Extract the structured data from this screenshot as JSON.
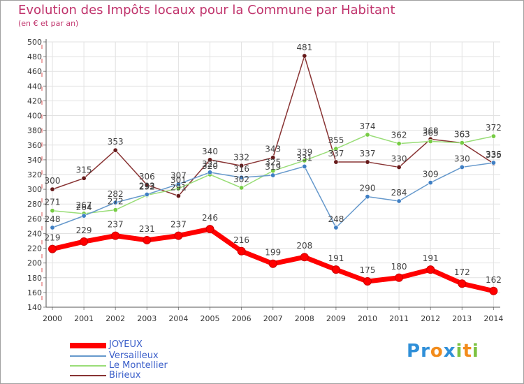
{
  "title": "Evolution des Impôts locaux pour la Commune par Habitant",
  "subtitle": "(en € et par an)",
  "logo": {
    "text": "Proxiti",
    "letters": [
      {
        "char": "P",
        "color": "#2f8fd8"
      },
      {
        "char": "r",
        "color": "#2f8fd8"
      },
      {
        "char": "o",
        "color": "#f28c1c"
      },
      {
        "char": "x",
        "color": "#2f8fd8"
      },
      {
        "char": "i",
        "color": "#7cc242"
      },
      {
        "char": "t",
        "color": "#f28c1c"
      },
      {
        "char": "i",
        "color": "#7cc242"
      }
    ]
  },
  "chart_data": {
    "type": "line",
    "title": "Evolution des Impôts locaux pour la Commune par Habitant",
    "ylabel": "(en € et par an)",
    "xlabel": "",
    "ylim": [
      140,
      500
    ],
    "ytick_step": 20,
    "grid": true,
    "legend_position": "bottom-left",
    "x": [
      "2000",
      "2001",
      "2002",
      "2003",
      "2004",
      "2005",
      "2006",
      "2007",
      "2008",
      "2009",
      "2010",
      "2011",
      "2012",
      "2013",
      "2014"
    ],
    "series": [
      {
        "name": "JOYEUX",
        "color": "#ff0000",
        "marker_color": "#ff0000",
        "values": [
          219,
          229,
          237,
          231,
          237,
          246,
          216,
          199,
          208,
          191,
          175,
          180,
          191,
          172,
          162
        ],
        "value_labels": [
          "219",
          "229",
          "237",
          "231",
          "237",
          "246",
          "216",
          "199",
          "208",
          "191",
          "175",
          "180",
          "191",
          "172",
          "162"
        ],
        "bold": true
      },
      {
        "name": "Versailleux",
        "color": "#6699cc",
        "marker_color": "#3f7fc4",
        "values": [
          248,
          264,
          282,
          293,
          307,
          323,
          316,
          319,
          331,
          248,
          290,
          284,
          309,
          330,
          336
        ],
        "value_labels": [
          "248",
          "264",
          "282",
          "293",
          "307",
          "323",
          "316",
          "319",
          "331",
          "248",
          "290",
          "284",
          "309",
          "330",
          "336"
        ],
        "bold": false
      },
      {
        "name": "Le Montellier",
        "color": "#99dd77",
        "marker_color": "#77cc44",
        "values": [
          271,
          267,
          272,
          292,
          301,
          320,
          302,
          325,
          339,
          355,
          374,
          362,
          365,
          363,
          372
        ],
        "value_labels": [
          "271",
          "267",
          "272",
          "292",
          "301",
          "320",
          "302",
          "325",
          "339",
          "355",
          "374",
          "362",
          "365",
          "363",
          "372"
        ],
        "bold": false
      },
      {
        "name": "Birieux",
        "color": "#883333",
        "marker_color": "#661a1a",
        "values": [
          300,
          315,
          353,
          306,
          291,
          340,
          332,
          343,
          481,
          337,
          337,
          330,
          368,
          363,
          335
        ],
        "value_labels": [
          "300",
          "315",
          "353",
          "306",
          "291",
          "340",
          "332",
          "343",
          "481",
          "337",
          "337",
          "330",
          "368",
          "363",
          "335"
        ],
        "bold": false
      }
    ]
  }
}
